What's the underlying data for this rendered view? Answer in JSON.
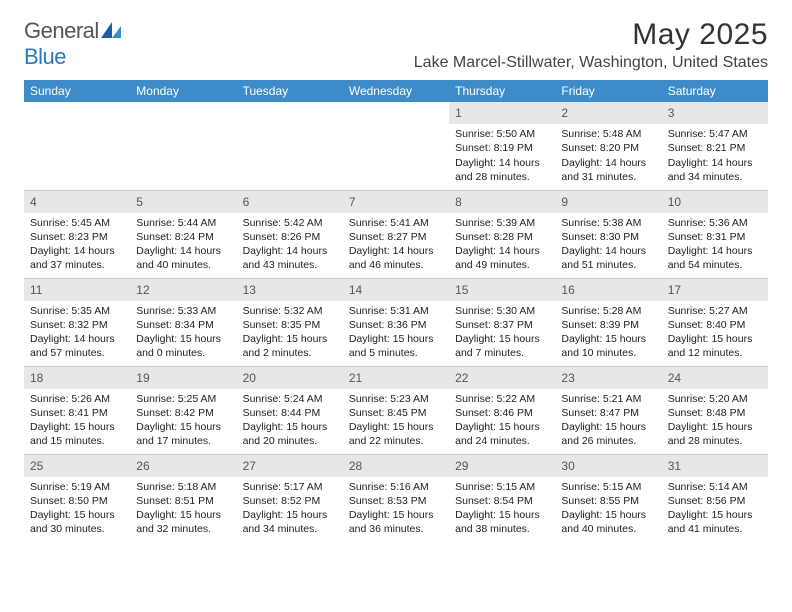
{
  "logo": {
    "text1": "General",
    "text2": "Blue"
  },
  "title": "May 2025",
  "location": "Lake Marcel-Stillwater, Washington, United States",
  "columns": [
    "Sunday",
    "Monday",
    "Tuesday",
    "Wednesday",
    "Thursday",
    "Friday",
    "Saturday"
  ],
  "colors": {
    "header_bg": "#3d8cc9",
    "header_fg": "#ffffff",
    "band_bg": "#e7e7e7",
    "rule": "#c9c9c9",
    "logo_blue": "#2a7ab9"
  },
  "weeks": [
    [
      null,
      null,
      null,
      null,
      {
        "n": "1",
        "sunrise": "5:50 AM",
        "sunset": "8:19 PM",
        "daylight": "14 hours and 28 minutes."
      },
      {
        "n": "2",
        "sunrise": "5:48 AM",
        "sunset": "8:20 PM",
        "daylight": "14 hours and 31 minutes."
      },
      {
        "n": "3",
        "sunrise": "5:47 AM",
        "sunset": "8:21 PM",
        "daylight": "14 hours and 34 minutes."
      }
    ],
    [
      {
        "n": "4",
        "sunrise": "5:45 AM",
        "sunset": "8:23 PM",
        "daylight": "14 hours and 37 minutes."
      },
      {
        "n": "5",
        "sunrise": "5:44 AM",
        "sunset": "8:24 PM",
        "daylight": "14 hours and 40 minutes."
      },
      {
        "n": "6",
        "sunrise": "5:42 AM",
        "sunset": "8:26 PM",
        "daylight": "14 hours and 43 minutes."
      },
      {
        "n": "7",
        "sunrise": "5:41 AM",
        "sunset": "8:27 PM",
        "daylight": "14 hours and 46 minutes."
      },
      {
        "n": "8",
        "sunrise": "5:39 AM",
        "sunset": "8:28 PM",
        "daylight": "14 hours and 49 minutes."
      },
      {
        "n": "9",
        "sunrise": "5:38 AM",
        "sunset": "8:30 PM",
        "daylight": "14 hours and 51 minutes."
      },
      {
        "n": "10",
        "sunrise": "5:36 AM",
        "sunset": "8:31 PM",
        "daylight": "14 hours and 54 minutes."
      }
    ],
    [
      {
        "n": "11",
        "sunrise": "5:35 AM",
        "sunset": "8:32 PM",
        "daylight": "14 hours and 57 minutes."
      },
      {
        "n": "12",
        "sunrise": "5:33 AM",
        "sunset": "8:34 PM",
        "daylight": "15 hours and 0 minutes."
      },
      {
        "n": "13",
        "sunrise": "5:32 AM",
        "sunset": "8:35 PM",
        "daylight": "15 hours and 2 minutes."
      },
      {
        "n": "14",
        "sunrise": "5:31 AM",
        "sunset": "8:36 PM",
        "daylight": "15 hours and 5 minutes."
      },
      {
        "n": "15",
        "sunrise": "5:30 AM",
        "sunset": "8:37 PM",
        "daylight": "15 hours and 7 minutes."
      },
      {
        "n": "16",
        "sunrise": "5:28 AM",
        "sunset": "8:39 PM",
        "daylight": "15 hours and 10 minutes."
      },
      {
        "n": "17",
        "sunrise": "5:27 AM",
        "sunset": "8:40 PM",
        "daylight": "15 hours and 12 minutes."
      }
    ],
    [
      {
        "n": "18",
        "sunrise": "5:26 AM",
        "sunset": "8:41 PM",
        "daylight": "15 hours and 15 minutes."
      },
      {
        "n": "19",
        "sunrise": "5:25 AM",
        "sunset": "8:42 PM",
        "daylight": "15 hours and 17 minutes."
      },
      {
        "n": "20",
        "sunrise": "5:24 AM",
        "sunset": "8:44 PM",
        "daylight": "15 hours and 20 minutes."
      },
      {
        "n": "21",
        "sunrise": "5:23 AM",
        "sunset": "8:45 PM",
        "daylight": "15 hours and 22 minutes."
      },
      {
        "n": "22",
        "sunrise": "5:22 AM",
        "sunset": "8:46 PM",
        "daylight": "15 hours and 24 minutes."
      },
      {
        "n": "23",
        "sunrise": "5:21 AM",
        "sunset": "8:47 PM",
        "daylight": "15 hours and 26 minutes."
      },
      {
        "n": "24",
        "sunrise": "5:20 AM",
        "sunset": "8:48 PM",
        "daylight": "15 hours and 28 minutes."
      }
    ],
    [
      {
        "n": "25",
        "sunrise": "5:19 AM",
        "sunset": "8:50 PM",
        "daylight": "15 hours and 30 minutes."
      },
      {
        "n": "26",
        "sunrise": "5:18 AM",
        "sunset": "8:51 PM",
        "daylight": "15 hours and 32 minutes."
      },
      {
        "n": "27",
        "sunrise": "5:17 AM",
        "sunset": "8:52 PM",
        "daylight": "15 hours and 34 minutes."
      },
      {
        "n": "28",
        "sunrise": "5:16 AM",
        "sunset": "8:53 PM",
        "daylight": "15 hours and 36 minutes."
      },
      {
        "n": "29",
        "sunrise": "5:15 AM",
        "sunset": "8:54 PM",
        "daylight": "15 hours and 38 minutes."
      },
      {
        "n": "30",
        "sunrise": "5:15 AM",
        "sunset": "8:55 PM",
        "daylight": "15 hours and 40 minutes."
      },
      {
        "n": "31",
        "sunrise": "5:14 AM",
        "sunset": "8:56 PM",
        "daylight": "15 hours and 41 minutes."
      }
    ]
  ],
  "labels": {
    "sunrise_prefix": "Sunrise: ",
    "sunset_prefix": "Sunset: ",
    "daylight_prefix": "Daylight: "
  }
}
